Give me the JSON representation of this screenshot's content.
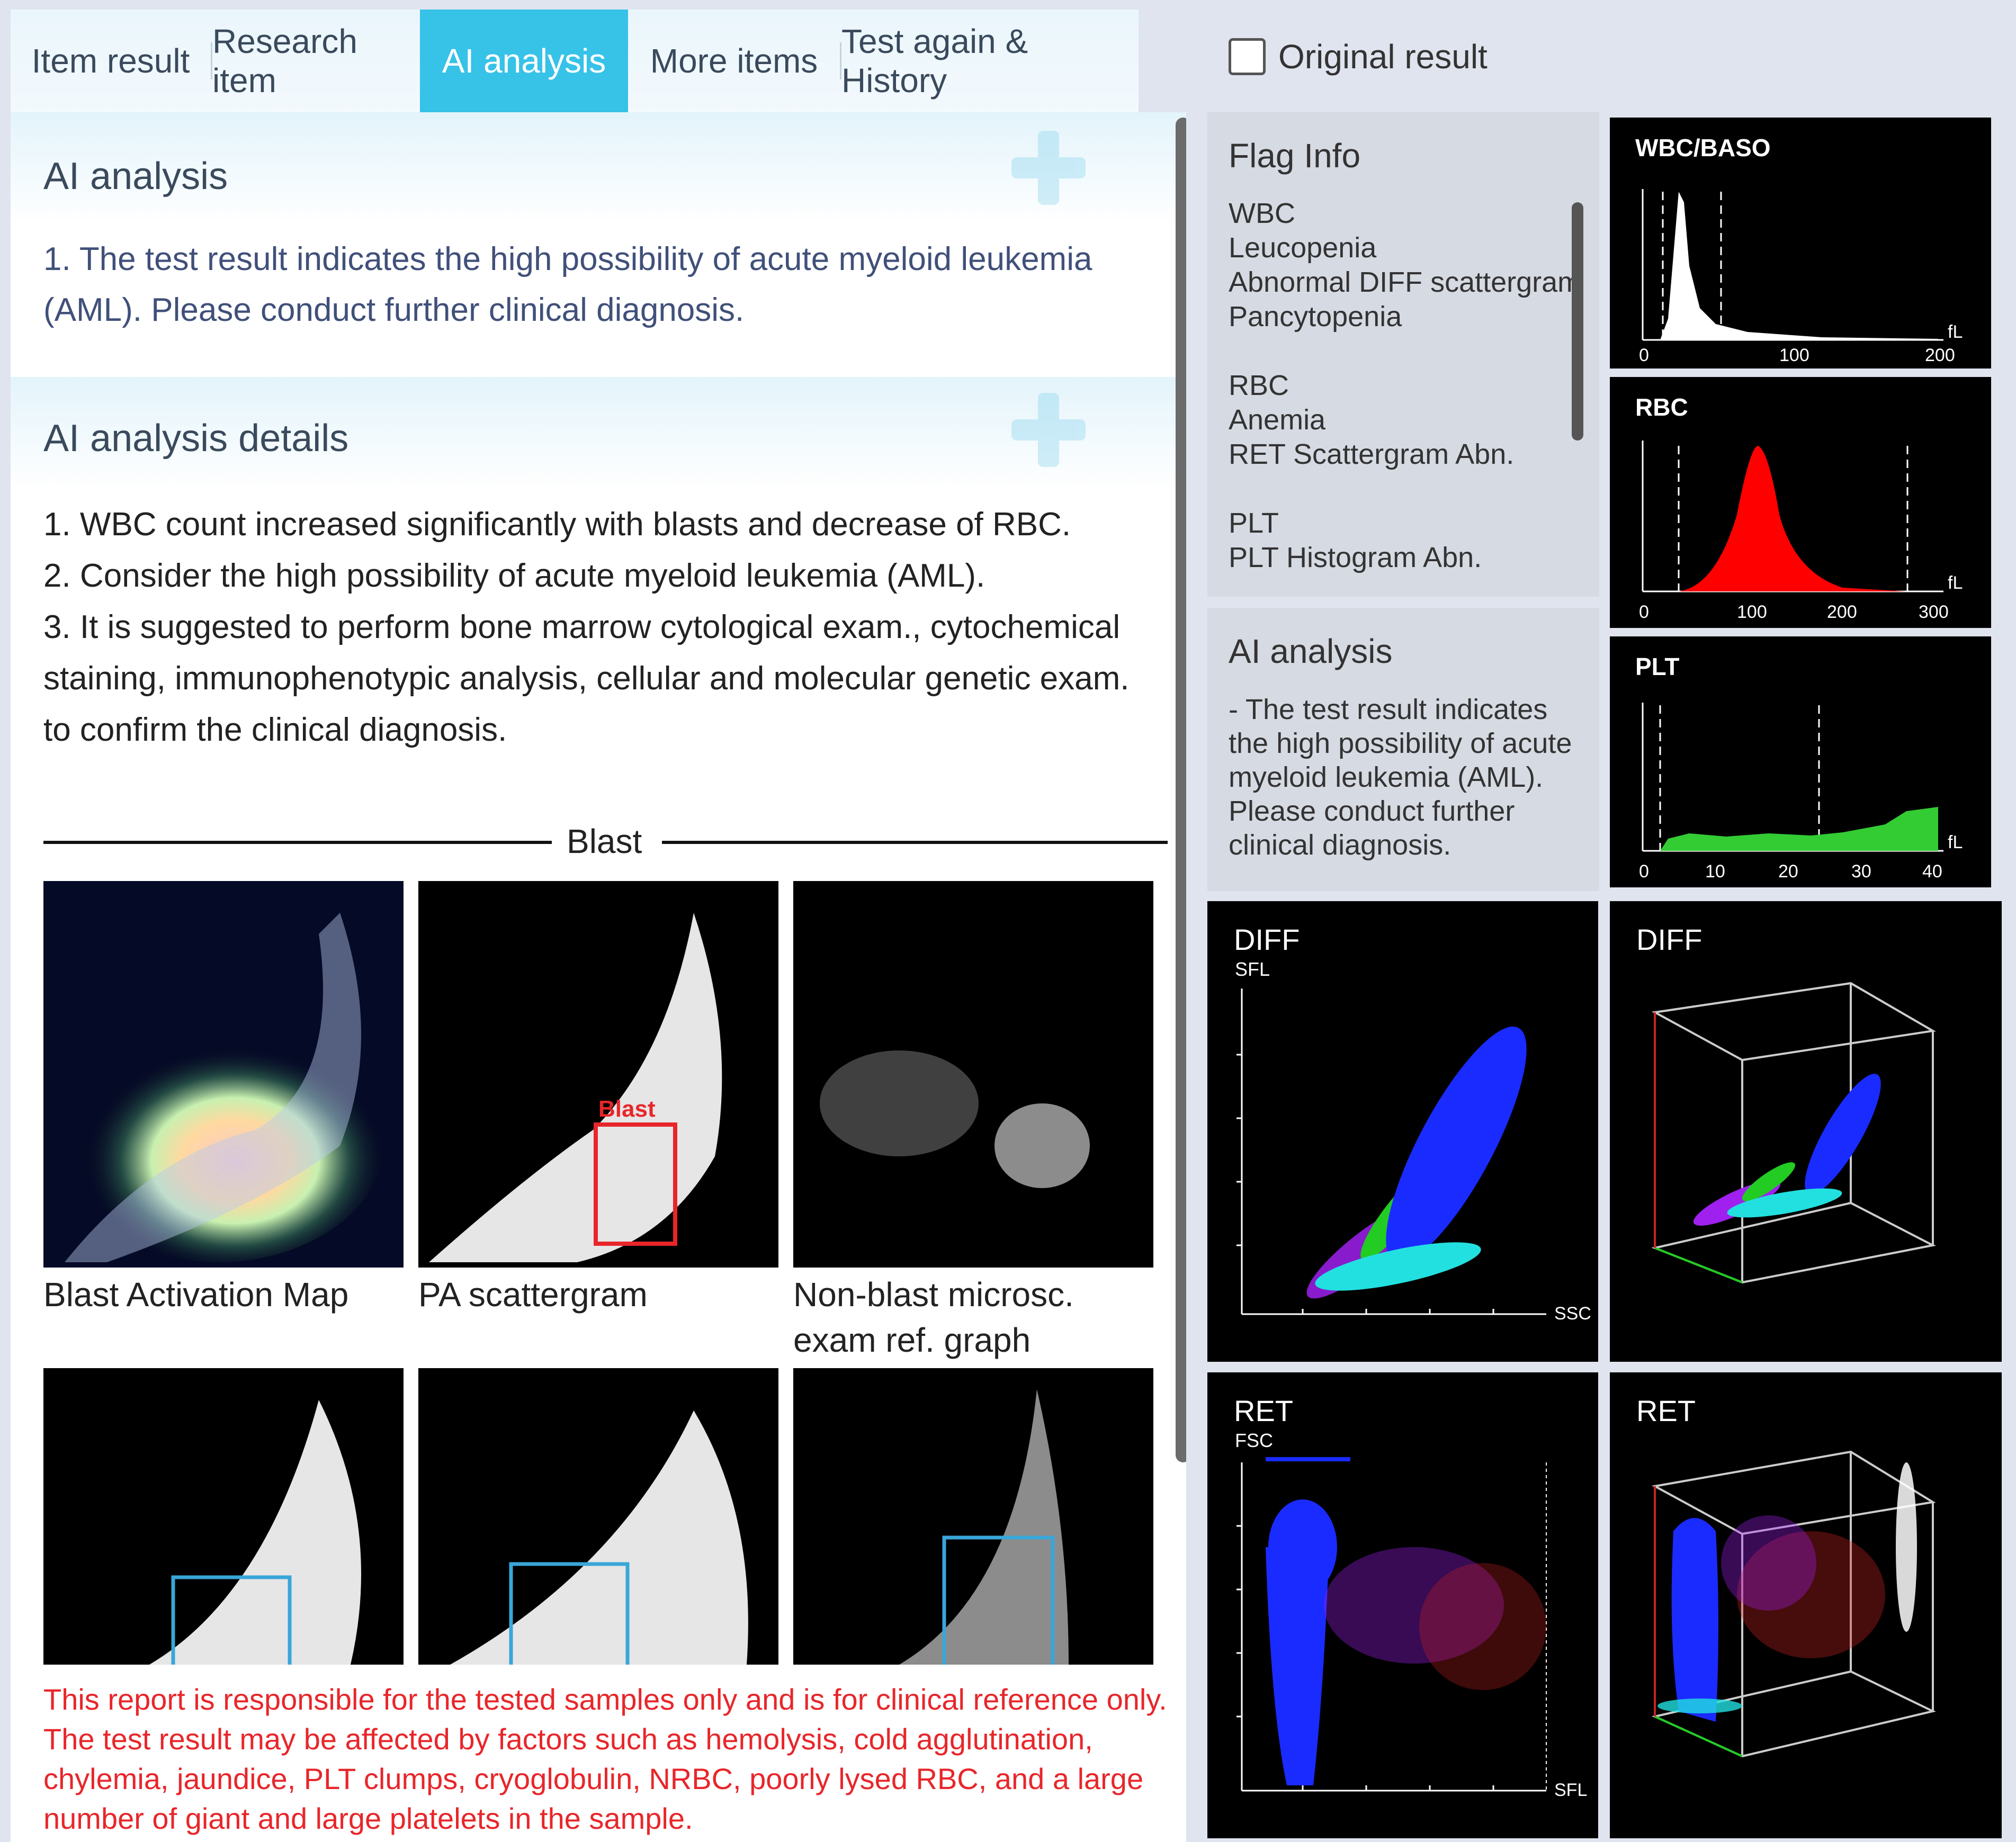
{
  "tabs": [
    {
      "label": "Item result",
      "active": false
    },
    {
      "label": "Research item",
      "active": false
    },
    {
      "label": "AI analysis",
      "active": true
    },
    {
      "label": "More items",
      "active": false
    },
    {
      "label": "Test again & History",
      "active": false
    }
  ],
  "original_result": {
    "label": "Original result",
    "checked": false
  },
  "ai_analysis": {
    "title": "AI analysis",
    "text": "1. The test result indicates the high possibility of acute myeloid leukemia (AML). Please conduct further clinical diagnosis."
  },
  "ai_details": {
    "title": "AI analysis details",
    "lines": [
      "1. WBC count increased significantly with blasts and decrease of RBC.",
      "2. Consider the high possibility of acute myeloid leukemia (AML).",
      "3. It is suggested to perform bone marrow cytological exam., cytochemical staining, immunophenotypic analysis, cellular and molecular genetic exam. to confirm the clinical diagnosis."
    ]
  },
  "blast_section": {
    "label": "Blast",
    "box_label": "Blast",
    "captions": [
      "Blast Activation Map",
      "PA scattergram",
      "Non-blast microsc. exam ref. graph"
    ]
  },
  "disclaimer": "This report is responsible for the tested samples only and is for clinical reference only. The test result may be affected by factors such as hemolysis, cold agglutination, chylemia, jaundice, PLT clumps, cryoglobulin, NRBC, poorly lysed RBC, and a large number of giant and large platelets in the sample.",
  "flag_info": {
    "title": "Flag Info",
    "items": [
      "WBC",
      "Leucopenia",
      "Abnormal DIFF scattergram",
      "Pancytopenia",
      "RBC",
      "Anemia",
      "RET Scattergram Abn.",
      "PLT",
      "PLT Histogram Abn."
    ]
  },
  "ai_side": {
    "title": "AI analysis",
    "text": "- The test result indicates the high possibility of acute myeloid leukemia (AML). Please conduct further clinical diagnosis."
  },
  "histograms": {
    "wbc": {
      "title": "WBC/BASO",
      "unit": "fL",
      "ticks": [
        "0",
        "100",
        "200"
      ],
      "color": "#ffffff"
    },
    "rbc": {
      "title": "RBC",
      "unit": "fL",
      "ticks": [
        "0",
        "100",
        "200",
        "300"
      ],
      "color": "#ff0000"
    },
    "plt": {
      "title": "PLT",
      "unit": "fL",
      "ticks": [
        "0",
        "10",
        "20",
        "30",
        "40"
      ],
      "color": "#33cc33"
    }
  },
  "scatter": {
    "diff2d": {
      "title": "DIFF",
      "ylabel": "SFL",
      "xlabel": "SSC"
    },
    "diff3d": {
      "title": "DIFF"
    },
    "ret2d": {
      "title": "RET",
      "ylabel": "FSC",
      "xlabel": "SFL"
    },
    "ret3d": {
      "title": "RET"
    }
  },
  "colors": {
    "accent": "#37c2e8",
    "warning": "#e8262a"
  }
}
